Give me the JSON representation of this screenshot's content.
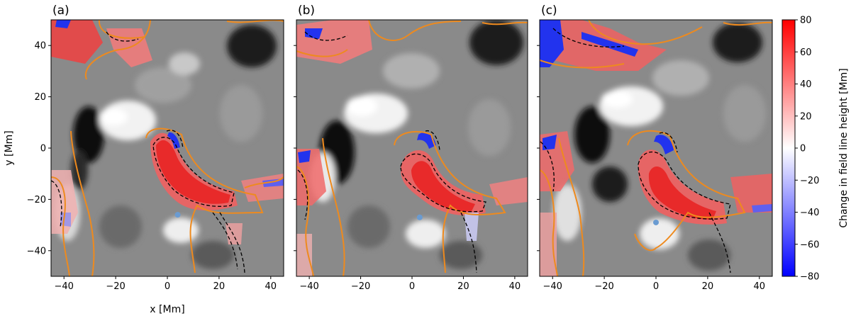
{
  "figure": {
    "xlabel": "x [Mm]",
    "ylabel": "y [Mm]",
    "colorbar_label": "Change in field line height [Mm]"
  },
  "chart_data": [
    {
      "type": "heatmap",
      "panel": "(a)",
      "xlim": [
        -45,
        45
      ],
      "ylim": [
        -50,
        50
      ],
      "xticks": [
        -40,
        -20,
        0,
        20,
        40
      ],
      "yticks": [
        40,
        20,
        0,
        -20,
        -40
      ],
      "footpoint_marker": {
        "x": 4,
        "y": -26
      },
      "features": [
        {
          "label": "strong increase",
          "x": 12,
          "y": -12,
          "value": 70
        },
        {
          "label": "decrease",
          "x": 2,
          "y": 3,
          "value": -70
        },
        {
          "label": "decrease",
          "x": 33,
          "y": -20,
          "value": -50
        }
      ]
    },
    {
      "type": "heatmap",
      "panel": "(b)",
      "xlim": [
        -45,
        45
      ],
      "ylim": [
        -50,
        50
      ],
      "xticks": [
        -40,
        -20,
        0,
        20,
        40
      ],
      "yticks": [
        40,
        20,
        0,
        -20,
        -40
      ],
      "footpoint_marker": {
        "x": 3,
        "y": -27
      },
      "features": [
        {
          "label": "strong increase",
          "x": 12,
          "y": -14,
          "value": 70
        },
        {
          "label": "decrease",
          "x": 7,
          "y": 1,
          "value": -70
        },
        {
          "label": "decrease",
          "x": 35,
          "y": -21,
          "value": -50
        }
      ]
    },
    {
      "type": "heatmap",
      "panel": "(c)",
      "xlim": [
        -45,
        45
      ],
      "ylim": [
        -50,
        50
      ],
      "xticks": [
        -40,
        -20,
        0,
        20,
        40
      ],
      "yticks": [
        40,
        20,
        0,
        -20,
        -40
      ],
      "footpoint_marker": {
        "x": 0,
        "y": -29
      },
      "features": [
        {
          "label": "strong increase",
          "x": 10,
          "y": -22,
          "value": 70
        },
        {
          "label": "decrease",
          "x": 4,
          "y": 0,
          "value": -75
        },
        {
          "label": "decrease",
          "x": 33,
          "y": -28,
          "value": -50
        }
      ]
    }
  ],
  "colorbar": {
    "ticks": [
      80,
      60,
      40,
      20,
      0,
      -20,
      -40,
      -60,
      -80
    ],
    "tick_labels": [
      "80",
      "60",
      "40",
      "20",
      "0",
      "−20",
      "−40",
      "−60",
      "−80"
    ],
    "range": [
      -80,
      80
    ],
    "colors": {
      "low": "#0000ff",
      "mid": "#ffffff",
      "high": "#ff0000"
    }
  },
  "colors": {
    "contour_orange": "#ee8a1e",
    "contour_black": "#000000",
    "marker": "#6a9bd1",
    "background_gray": "#7f7f7f"
  }
}
